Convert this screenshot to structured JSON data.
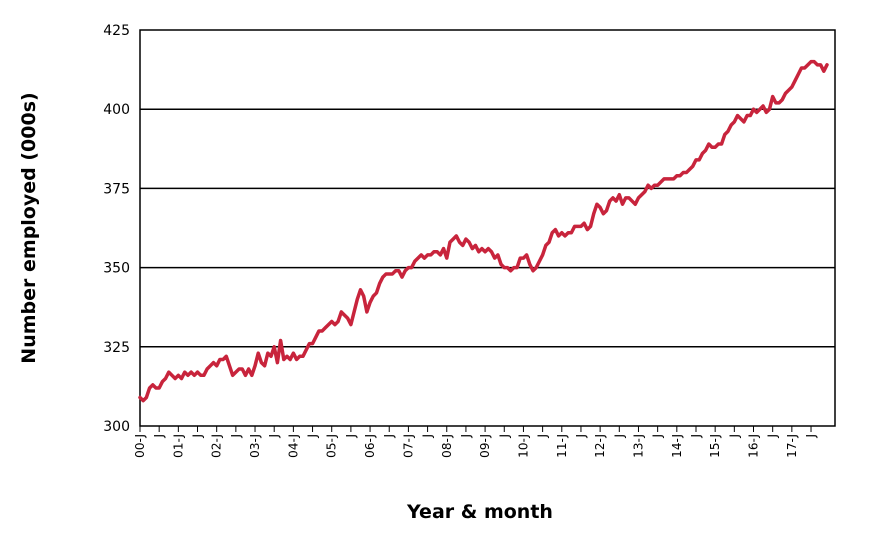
{
  "chart_data": {
    "type": "line",
    "title": "",
    "xlabel": "Year & month",
    "ylabel": "Number employed (000s)",
    "ylim": [
      300,
      425
    ],
    "yticks": [
      300,
      325,
      350,
      375,
      400,
      425
    ],
    "y_gridlines": true,
    "line_color": "#c8243c",
    "x_tick_labels": [
      "00-J",
      "J",
      "01-J",
      "J",
      "02-J",
      "J",
      "03-J",
      "J",
      "04-J",
      "J",
      "05-J",
      "J",
      "06-J",
      "J",
      "07-J",
      "J",
      "08-J",
      "J",
      "09-J",
      "J",
      "10-J",
      "J",
      "11-J",
      "J",
      "12-J",
      "J",
      "13-J",
      "J",
      "14-J",
      "J",
      "15-J",
      "J",
      "16-J",
      "J",
      "17-J",
      "J"
    ],
    "x_start": "2000-01",
    "x_end": "2017-10",
    "series": [
      {
        "values": [
          309,
          308,
          309,
          312,
          313,
          312,
          312,
          314,
          315,
          317,
          316,
          315,
          316,
          315,
          317,
          316,
          317,
          316,
          317,
          316,
          316,
          318,
          319,
          320,
          319,
          321,
          321,
          322,
          319,
          316,
          317,
          318,
          318,
          316,
          318,
          316,
          319,
          323,
          320,
          319,
          323,
          322,
          325,
          320,
          327,
          321,
          322,
          321,
          323,
          321,
          322,
          322,
          324,
          326,
          326,
          328,
          330,
          330,
          331,
          332,
          333,
          332,
          333,
          336,
          335,
          334,
          332,
          336,
          340,
          343,
          341,
          336,
          339,
          341,
          342,
          345,
          347,
          348,
          348,
          348,
          349,
          349,
          347,
          349,
          350,
          350,
          352,
          353,
          354,
          353,
          354,
          354,
          355,
          355,
          354,
          356,
          353,
          358,
          359,
          360,
          358,
          357,
          359,
          358,
          356,
          357,
          355,
          356,
          355,
          356,
          355,
          353,
          354,
          351,
          350,
          350,
          349,
          350,
          350,
          353,
          353,
          354,
          351,
          349,
          350,
          352,
          354,
          357,
          358,
          361,
          362,
          360,
          361,
          360,
          361,
          361,
          363,
          363,
          363,
          364,
          362,
          363,
          367,
          370,
          369,
          367,
          368,
          371,
          372,
          371,
          373,
          370,
          372,
          372,
          371,
          370,
          372,
          373,
          374,
          376,
          375,
          376,
          376,
          377,
          378,
          378,
          378,
          378,
          379,
          379,
          380,
          380,
          381,
          382,
          384,
          384,
          386,
          387,
          389,
          388,
          388,
          389,
          389,
          392,
          393,
          395,
          396,
          398,
          397,
          396,
          398,
          398,
          400,
          399,
          400,
          401,
          399,
          400,
          404,
          402,
          402,
          403,
          405,
          406,
          407,
          409,
          411,
          413,
          413,
          414,
          415,
          415,
          414,
          414,
          412,
          414
        ]
      }
    ]
  }
}
